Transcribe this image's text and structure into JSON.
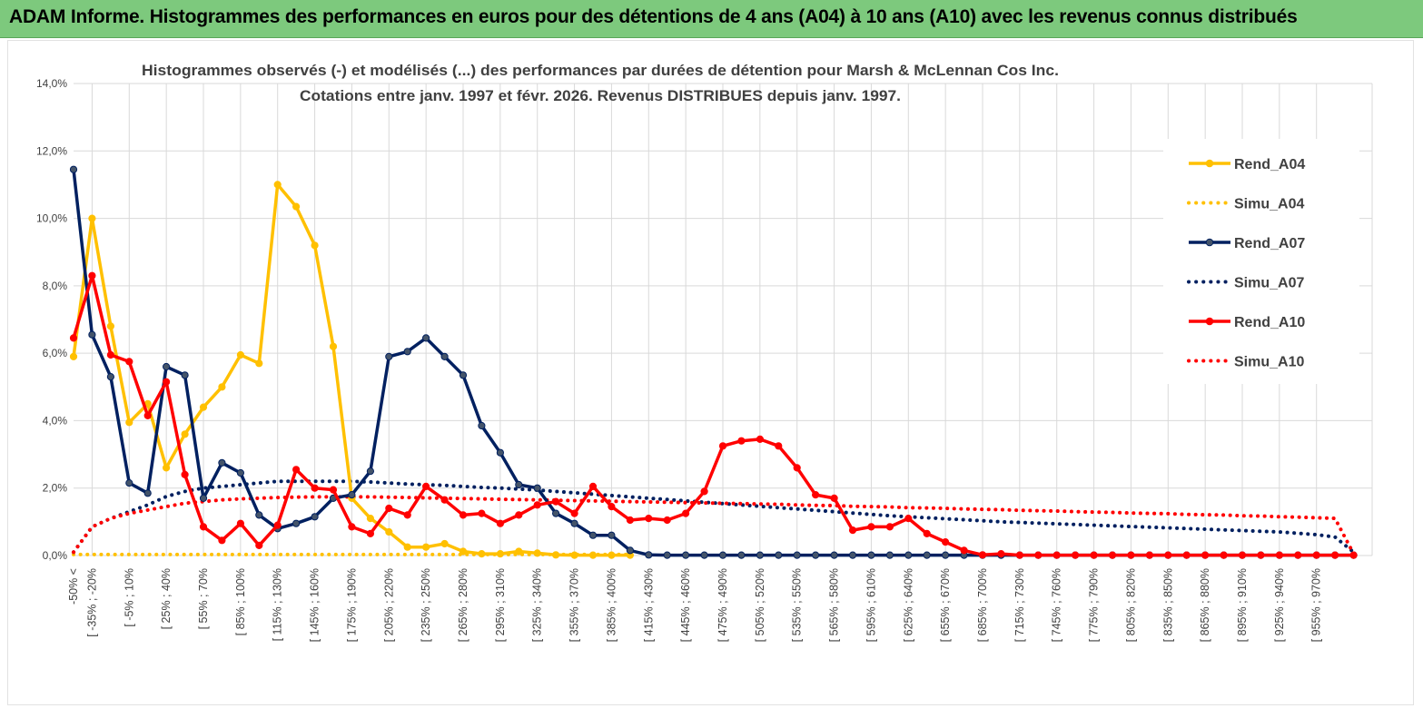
{
  "header": {
    "title": "ADAM Informe. Histogrammes des performances en euros pour des détentions de 4 ans (A04) à 10 ans (A10) avec les revenus connus distribués"
  },
  "chart_data": {
    "type": "line",
    "title": "Histogrammes observés (-) et modélisés (...) des performances par durées de détention pour Marsh & McLennan Cos Inc.",
    "subtitle": "Cotations entre janv. 1997 et févr. 2026. Revenus DISTRIBUES depuis janv. 1997.",
    "ylim": [
      0,
      14
    ],
    "yticks": [
      "0,0%",
      "2,0%",
      "4,0%",
      "6,0%",
      "8,0%",
      "10,0%",
      "12,0%",
      "14,0%"
    ],
    "grid": true,
    "legend_position": "right",
    "category_labels": [
      "-50% <",
      "[ -35% ; -20%",
      "[ -5% ; 10%",
      "[ 25% ; 40%",
      "[ 55% ; 70%",
      "[ 85% ; 100%",
      "[ 115% ; 130%",
      "[ 145% ; 160%",
      "[ 175% ; 190%",
      "[ 205% ; 220%",
      "[ 235% ; 250%",
      "[ 265% ; 280%",
      "[ 295% ; 310%",
      "[ 325% ; 340%",
      "[ 355% ; 370%",
      "[ 385% ; 400%",
      "[ 415% ; 430%",
      "[ 445% ; 460%",
      "[ 475% ; 490%",
      "[ 505% ; 520%",
      "[ 535% ; 550%",
      "[ 565% ; 580%",
      "[ 595% ; 610%",
      "[ 625% ; 640%",
      "[ 655% ; 670%",
      "[ 685% ; 700%",
      "[ 715% ; 730%",
      "[ 745% ; 760%",
      "[ 775% ; 790%",
      "[ 805% ; 820%",
      "[ 835% ; 850%",
      "[ 865% ; 880%",
      "[ 895% ; 910%",
      "[ 925% ; 940%",
      "[ 955% ; 970%"
    ],
    "series": [
      {
        "name": "Rend_A04",
        "style": "solid",
        "color": "#ffc000",
        "values": [
          5.9,
          10.0,
          6.8,
          3.95,
          4.5,
          2.6,
          3.6,
          4.4,
          5.0,
          5.95,
          5.7,
          11.0,
          10.35,
          9.2,
          6.2,
          1.7,
          1.1,
          0.7,
          0.25,
          0.25,
          0.35,
          0.12,
          0.05,
          0.05,
          0.12,
          0.07,
          0.02,
          0.01,
          0.01,
          0.01,
          0.01
        ]
      },
      {
        "name": "Simu_A04",
        "style": "dotted",
        "color": "#ffc000",
        "values": [
          0.03,
          0.03,
          0.03,
          0.03,
          0.03,
          0.03,
          0.03,
          0.03,
          0.03,
          0.03,
          0.03,
          0.03,
          0.03,
          0.03,
          0.03,
          0.03,
          0.03,
          0.03,
          0.03,
          0.03,
          0.03,
          0.03,
          0.03,
          0.03,
          0.03,
          0.03,
          0.03,
          0.03,
          0.03,
          0.03,
          0.03
        ]
      },
      {
        "name": "Rend_A07",
        "style": "solid",
        "color": "#002060",
        "values": [
          11.45,
          6.55,
          5.3,
          2.15,
          1.85,
          5.6,
          5.35,
          1.7,
          2.75,
          2.45,
          1.2,
          0.8,
          0.95,
          1.15,
          1.7,
          1.8,
          2.5,
          5.9,
          6.05,
          6.45,
          5.9,
          5.35,
          3.85,
          3.05,
          2.1,
          2.0,
          1.25,
          0.95,
          0.6,
          0.6,
          0.15,
          0.02,
          0.01,
          0.01,
          0.01,
          0.01,
          0.01,
          0.01,
          0.01,
          0.01,
          0.01,
          0.01,
          0.01,
          0.01,
          0.01,
          0.01,
          0.01,
          0.01,
          0.01,
          0.01,
          0.01,
          0.01,
          0.01,
          0.01,
          0.01,
          0.01,
          0.01,
          0.01,
          0.01,
          0.01,
          0.01,
          0.01,
          0.01,
          0.01,
          0.01,
          0.01,
          0.01,
          0.01,
          0.01,
          0.01
        ]
      },
      {
        "name": "Simu_A07",
        "style": "dotted",
        "color": "#002060",
        "values": [
          0.1,
          0.85,
          1.1,
          1.3,
          1.5,
          1.75,
          1.9,
          2.0,
          2.05,
          2.1,
          2.15,
          2.2,
          2.2,
          2.2,
          2.2,
          2.2,
          2.18,
          2.15,
          2.12,
          2.1,
          2.08,
          2.05,
          2.02,
          2.0,
          1.97,
          1.94,
          1.9,
          1.86,
          1.82,
          1.78,
          1.74,
          1.7,
          1.66,
          1.62,
          1.58,
          1.54,
          1.5,
          1.46,
          1.42,
          1.38,
          1.34,
          1.3,
          1.26,
          1.22,
          1.18,
          1.15,
          1.12,
          1.09,
          1.06,
          1.03,
          1.0,
          0.98,
          0.96,
          0.94,
          0.92,
          0.9,
          0.88,
          0.86,
          0.84,
          0.82,
          0.8,
          0.78,
          0.76,
          0.74,
          0.72,
          0.7,
          0.66,
          0.62,
          0.55,
          0.1
        ]
      },
      {
        "name": "Rend_A10",
        "style": "solid",
        "color": "#ff0000",
        "values": [
          6.45,
          8.3,
          5.95,
          5.75,
          4.15,
          5.15,
          2.4,
          0.85,
          0.45,
          0.95,
          0.3,
          0.9,
          2.55,
          2.0,
          1.95,
          0.85,
          0.65,
          1.4,
          1.2,
          2.05,
          1.65,
          1.2,
          1.25,
          0.95,
          1.2,
          1.5,
          1.6,
          1.25,
          2.05,
          1.45,
          1.05,
          1.1,
          1.05,
          1.25,
          1.9,
          3.25,
          3.4,
          3.45,
          3.25,
          2.6,
          1.8,
          1.7,
          0.75,
          0.85,
          0.85,
          1.1,
          0.65,
          0.4,
          0.15,
          0.02,
          0.05,
          0.01,
          0.01,
          0.01,
          0.01,
          0.01,
          0.01,
          0.01,
          0.01,
          0.01,
          0.01,
          0.01,
          0.01,
          0.01,
          0.01,
          0.01,
          0.01,
          0.01,
          0.01,
          0.01
        ]
      },
      {
        "name": "Simu_A10",
        "style": "dotted",
        "color": "#ff0000",
        "values": [
          0.1,
          0.85,
          1.1,
          1.25,
          1.35,
          1.45,
          1.55,
          1.6,
          1.65,
          1.68,
          1.7,
          1.72,
          1.73,
          1.74,
          1.74,
          1.74,
          1.74,
          1.73,
          1.72,
          1.71,
          1.7,
          1.69,
          1.68,
          1.67,
          1.66,
          1.65,
          1.64,
          1.63,
          1.62,
          1.61,
          1.6,
          1.59,
          1.58,
          1.57,
          1.56,
          1.55,
          1.54,
          1.53,
          1.52,
          1.5,
          1.49,
          1.48,
          1.46,
          1.45,
          1.44,
          1.42,
          1.41,
          1.4,
          1.38,
          1.37,
          1.36,
          1.34,
          1.33,
          1.32,
          1.3,
          1.29,
          1.28,
          1.26,
          1.25,
          1.24,
          1.22,
          1.21,
          1.2,
          1.18,
          1.17,
          1.15,
          1.14,
          1.12,
          1.1,
          0.05
        ]
      }
    ]
  }
}
